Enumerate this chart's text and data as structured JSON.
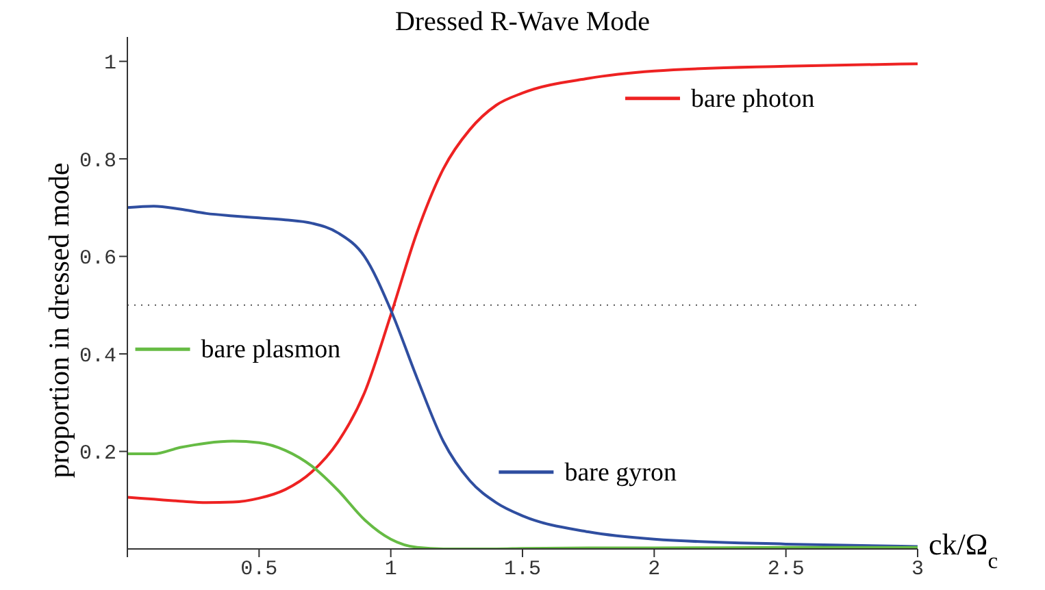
{
  "chart_data": {
    "type": "line",
    "title": "Dressed R-Wave Mode",
    "xlabel": "ck/Ω$_{c}$",
    "ylabel": "proportion in dressed mode",
    "xlim": [
      0,
      3
    ],
    "ylim": [
      0,
      1.05
    ],
    "xticks": [
      {
        "value": 0,
        "label": null
      },
      0.5,
      1,
      1.5,
      2,
      2.5,
      3
    ],
    "yticks": [
      0.2,
      0.4,
      0.6,
      0.8,
      1
    ],
    "legend": "top left",
    "marker": "none",
    "line_style": "solid",
    "ref_lines": [
      {
        "axis": "y",
        "value": 0.5,
        "label": null,
        "color": "#555555",
        "line_style": "dotted"
      }
    ],
    "x": [
      0,
      0.1,
      0.2,
      0.3,
      0.4,
      0.5,
      0.6,
      0.7,
      0.8,
      0.9,
      1.0,
      1.1,
      1.2,
      1.3,
      1.4,
      1.5,
      1.75,
      2,
      2.5,
      3
    ],
    "series": [
      {
        "name": "bare photon",
        "color": "#ee2222",
        "values": [
          0.106,
          0.102,
          0.098,
          0.095,
          0.096,
          0.104,
          0.122,
          0.158,
          0.22,
          0.32,
          0.48,
          0.65,
          0.78,
          0.86,
          0.91,
          0.935,
          0.965,
          0.98,
          0.99,
          0.995
        ]
      },
      {
        "name": "bare gyron",
        "color": "#2f4ea0",
        "values": [
          0.7,
          0.703,
          0.697,
          0.688,
          0.683,
          0.679,
          0.675,
          0.668,
          0.648,
          0.6,
          0.49,
          0.35,
          0.22,
          0.14,
          0.095,
          0.068,
          0.035,
          0.02,
          0.01,
          0.005
        ]
      },
      {
        "name": "bare plasmon",
        "color": "#66bb44",
        "values": [
          0.195,
          0.195,
          0.208,
          0.217,
          0.221,
          0.218,
          0.202,
          0.17,
          0.12,
          0.06,
          0.02,
          0.003,
          0,
          0,
          0,
          0.001,
          0.002,
          0.002,
          0.003,
          0.003
        ]
      }
    ]
  }
}
